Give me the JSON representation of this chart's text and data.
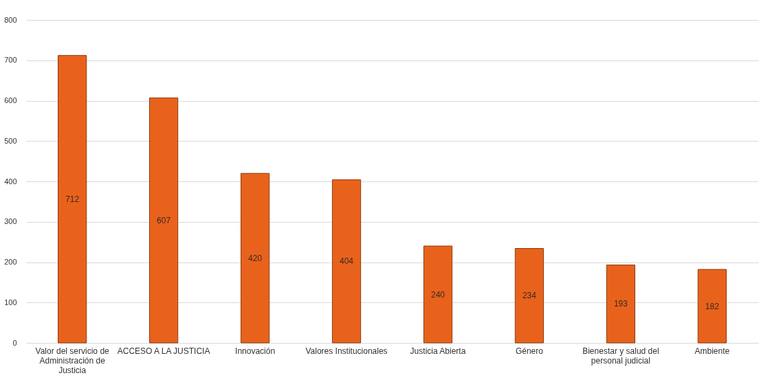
{
  "chart_data": {
    "type": "bar",
    "categories": [
      "Valor del servicio de Administración de Justicia",
      "ACCESO A LA JUSTICIA",
      "Innovación",
      "Valores Institucionales",
      "Justicia Abierta",
      "Género",
      "Bienestar y salud del personal judicial",
      "Ambiente"
    ],
    "values": [
      712,
      607,
      420,
      404,
      240,
      234,
      193,
      182
    ],
    "color": "#e8621c",
    "ylim": [
      0,
      800
    ],
    "yticks": [
      0,
      100,
      200,
      300,
      400,
      500,
      600,
      700,
      800
    ],
    "grid": "y",
    "data_labels": true
  }
}
